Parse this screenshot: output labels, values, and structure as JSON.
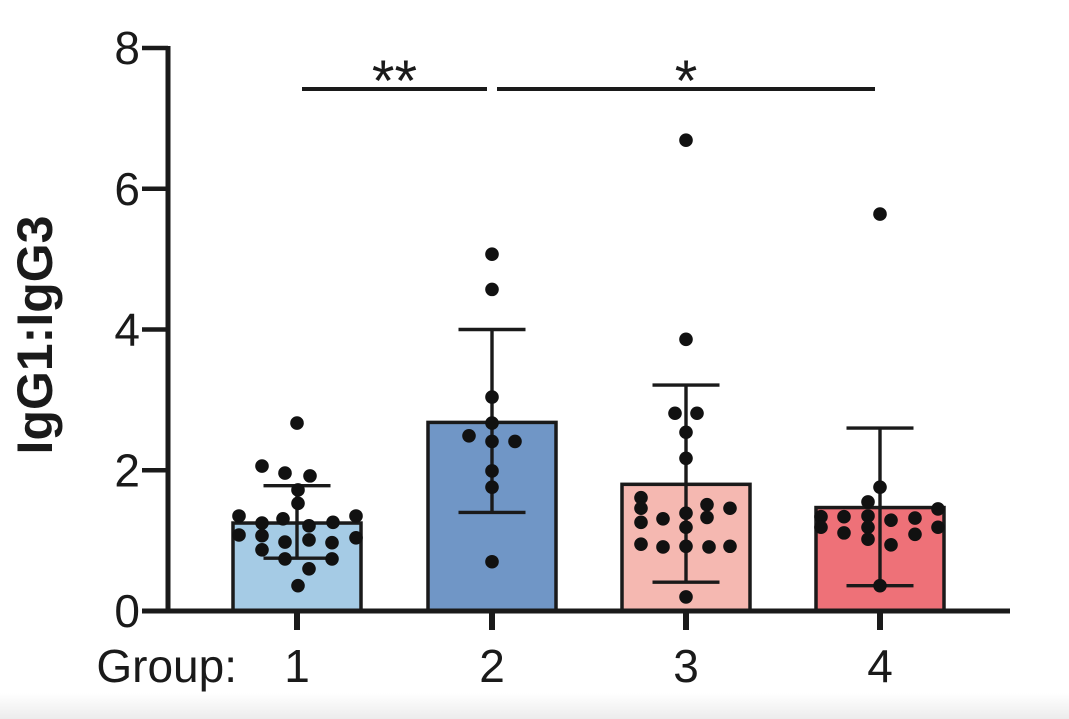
{
  "figure": {
    "background": "#ffffff",
    "ink_color": "#1a1a1a",
    "point_color": "#111111"
  },
  "chart_data": {
    "type": "bar",
    "title": "",
    "ylabel": "IgG1:IgG3",
    "xlabel_prefix": "Group:",
    "categories": [
      "1",
      "2",
      "3",
      "4"
    ],
    "ylim": [
      0,
      8
    ],
    "yticks": [
      0,
      2,
      4,
      6,
      8
    ],
    "grid": false,
    "legend": "none",
    "error_bar_style": "sd-whiskers-with-caps",
    "overlay": "jittered-scatter-points",
    "groups": [
      {
        "label": "1",
        "bar_color": "#a5cbe5",
        "mean": 1.25,
        "err_low": 0.75,
        "err_high": 1.78,
        "points": [
          [
            0,
            2.67
          ],
          [
            -35,
            2.06
          ],
          [
            -12,
            1.96
          ],
          [
            13,
            1.92
          ],
          [
            1,
            1.72
          ],
          [
            1,
            1.53
          ],
          [
            -58,
            1.35
          ],
          [
            -35,
            1.25
          ],
          [
            -14,
            1.31
          ],
          [
            12,
            1.21
          ],
          [
            36,
            1.26
          ],
          [
            59,
            1.35
          ],
          [
            -58,
            1.08
          ],
          [
            -35,
            1.07
          ],
          [
            -12,
            0.98
          ],
          [
            12,
            1.01
          ],
          [
            35,
            0.97
          ],
          [
            59,
            1.04
          ],
          [
            -35,
            0.87
          ],
          [
            -12,
            0.74
          ],
          [
            12,
            0.6
          ],
          [
            35,
            0.74
          ],
          [
            1,
            0.36
          ]
        ]
      },
      {
        "label": "2",
        "bar_color": "#7096c6",
        "mean": 2.68,
        "err_low": 1.4,
        "err_high": 4.0,
        "points": [
          [
            0,
            5.07
          ],
          [
            0,
            4.57
          ],
          [
            0,
            3.04
          ],
          [
            0,
            2.67
          ],
          [
            -23,
            2.49
          ],
          [
            0,
            2.41
          ],
          [
            23,
            2.41
          ],
          [
            0,
            1.99
          ],
          [
            0,
            1.76
          ],
          [
            0,
            0.7
          ]
        ]
      },
      {
        "label": "3",
        "bar_color": "#f5b8b1",
        "mean": 1.8,
        "err_low": 0.41,
        "err_high": 3.21,
        "points": [
          [
            0,
            6.69
          ],
          [
            0,
            3.86
          ],
          [
            -11,
            2.81
          ],
          [
            11,
            2.81
          ],
          [
            0,
            2.54
          ],
          [
            0,
            2.17
          ],
          [
            -45,
            1.61
          ],
          [
            -45,
            1.46
          ],
          [
            -23,
            1.31
          ],
          [
            0,
            1.39
          ],
          [
            21,
            1.51
          ],
          [
            44,
            1.46
          ],
          [
            -45,
            1.26
          ],
          [
            21,
            1.33
          ],
          [
            0,
            1.19
          ],
          [
            -45,
            0.95
          ],
          [
            -23,
            0.91
          ],
          [
            0,
            0.92
          ],
          [
            23,
            0.91
          ],
          [
            44,
            0.92
          ],
          [
            0,
            0.2
          ]
        ]
      },
      {
        "label": "4",
        "bar_color": "#ee7178",
        "mean": 1.47,
        "err_low": 0.36,
        "err_high": 2.6,
        "points": [
          [
            0,
            5.64
          ],
          [
            0,
            1.76
          ],
          [
            -12,
            1.55
          ],
          [
            58,
            1.45
          ],
          [
            -59,
            1.34
          ],
          [
            -36,
            1.34
          ],
          [
            -12,
            1.35
          ],
          [
            11,
            1.29
          ],
          [
            35,
            1.32
          ],
          [
            -59,
            1.19
          ],
          [
            -12,
            1.19
          ],
          [
            58,
            1.19
          ],
          [
            -36,
            1.11
          ],
          [
            35,
            1.09
          ],
          [
            -12,
            1.02
          ],
          [
            11,
            0.94
          ],
          [
            0,
            0.36
          ]
        ]
      }
    ],
    "significance": [
      {
        "between": [
          "1",
          "2"
        ],
        "label": "**"
      },
      {
        "between": [
          "2",
          "4"
        ],
        "label": "*"
      }
    ]
  }
}
